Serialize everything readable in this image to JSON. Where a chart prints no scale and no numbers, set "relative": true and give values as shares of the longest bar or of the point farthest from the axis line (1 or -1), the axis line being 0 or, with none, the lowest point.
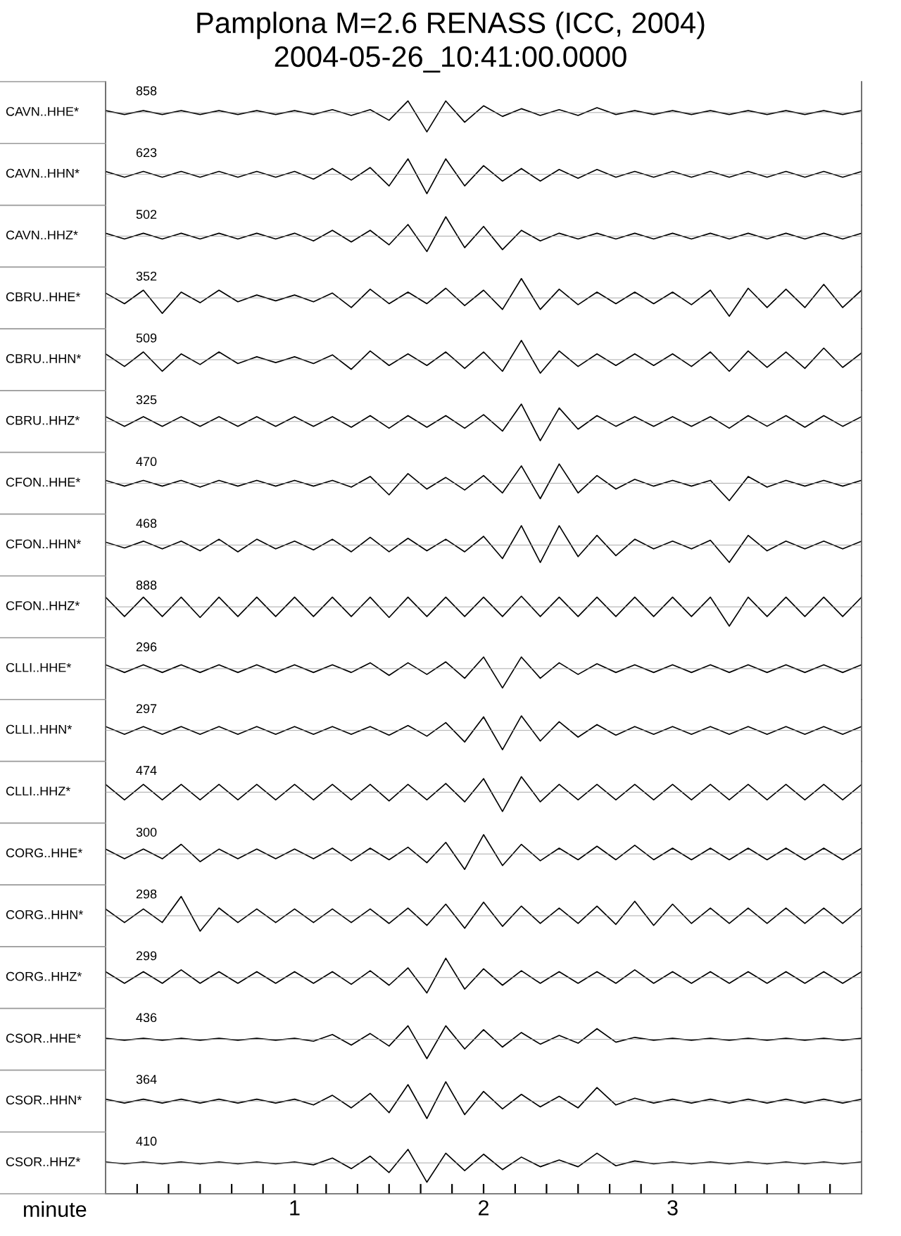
{
  "chart_data": [
    {
      "type": "line",
      "title": "Pamplona M=2.6 RENASS (ICC, 2004)",
      "subtitle": "2004-05-26_10:41:00.0000",
      "ylabel": "CAVN..HHE*",
      "annotations": [
        "858"
      ],
      "relative": true,
      "xlim": [
        0,
        4
      ],
      "tick_labels": false,
      "x": [
        0,
        0.1,
        0.2,
        0.3,
        0.4,
        0.5,
        0.6,
        0.7,
        0.8,
        0.9,
        1,
        1.1,
        1.2,
        1.3,
        1.4,
        1.5,
        1.6,
        1.7,
        1.8,
        1.9,
        2,
        2.1,
        2.2,
        2.3,
        2.4,
        2.5,
        2.6,
        2.7,
        2.8,
        2.9,
        3,
        3.1,
        3.2,
        3.3,
        3.4,
        3.5,
        3.6,
        3.7,
        3.8,
        3.9,
        4
      ],
      "series": [
        {
          "color": "#000000",
          "values": [
            0.1,
            -0.1,
            0.1,
            -0.1,
            0.1,
            -0.1,
            0.1,
            -0.1,
            0.1,
            -0.1,
            0.1,
            -0.1,
            0.15,
            -0.15,
            0.15,
            -0.4,
            0.6,
            -1,
            0.6,
            -0.5,
            0.35,
            -0.2,
            0.2,
            -0.15,
            0.15,
            -0.15,
            0.25,
            -0.1,
            0.1,
            -0.1,
            0.1,
            -0.1,
            0.1,
            -0.1,
            0.1,
            -0.1,
            0.1,
            -0.1,
            0.1,
            -0.1,
            0.1
          ]
        }
      ]
    },
    {
      "type": "line",
      "ylabel": "CAVN..HHN*",
      "annotations": [
        "623"
      ],
      "relative": true,
      "xlim": [
        0,
        4
      ],
      "tick_labels": false,
      "x": [
        0,
        0.1,
        0.2,
        0.3,
        0.4,
        0.5,
        0.6,
        0.7,
        0.8,
        0.9,
        1,
        1.1,
        1.2,
        1.3,
        1.4,
        1.5,
        1.6,
        1.7,
        1.8,
        1.9,
        2,
        2.1,
        2.2,
        2.3,
        2.4,
        2.5,
        2.6,
        2.7,
        2.8,
        2.9,
        3,
        3.1,
        3.2,
        3.3,
        3.4,
        3.5,
        3.6,
        3.7,
        3.8,
        3.9,
        4
      ],
      "series": [
        {
          "color": "#000000",
          "values": [
            0.15,
            -0.15,
            0.15,
            -0.15,
            0.15,
            -0.15,
            0.15,
            -0.15,
            0.15,
            -0.15,
            0.15,
            -0.25,
            0.3,
            -0.3,
            0.35,
            -0.6,
            0.8,
            -1,
            0.8,
            -0.6,
            0.45,
            -0.35,
            0.3,
            -0.35,
            0.25,
            -0.2,
            0.25,
            -0.15,
            0.15,
            -0.15,
            0.15,
            -0.15,
            0.15,
            -0.15,
            0.15,
            -0.15,
            0.15,
            -0.15,
            0.15,
            -0.15,
            0.15
          ]
        }
      ]
    },
    {
      "type": "line",
      "ylabel": "CAVN..HHZ*",
      "annotations": [
        "502"
      ],
      "relative": true,
      "xlim": [
        0,
        4
      ],
      "tick_labels": false,
      "x": [
        0,
        0.1,
        0.2,
        0.3,
        0.4,
        0.5,
        0.6,
        0.7,
        0.8,
        0.9,
        1,
        1.1,
        1.2,
        1.3,
        1.4,
        1.5,
        1.6,
        1.7,
        1.8,
        1.9,
        2,
        2.1,
        2.2,
        2.3,
        2.4,
        2.5,
        2.6,
        2.7,
        2.8,
        2.9,
        3,
        3.1,
        3.2,
        3.3,
        3.4,
        3.5,
        3.6,
        3.7,
        3.8,
        3.9,
        4
      ],
      "series": [
        {
          "color": "#000000",
          "values": [
            0.15,
            -0.15,
            0.15,
            -0.15,
            0.15,
            -0.15,
            0.15,
            -0.15,
            0.15,
            -0.15,
            0.15,
            -0.25,
            0.3,
            -0.3,
            0.3,
            -0.45,
            0.6,
            -0.8,
            1,
            -0.6,
            0.5,
            -0.7,
            0.3,
            -0.25,
            0.15,
            -0.15,
            0.15,
            -0.15,
            0.15,
            -0.15,
            0.15,
            -0.15,
            0.15,
            -0.15,
            0.15,
            -0.15,
            0.15,
            -0.15,
            0.15,
            -0.15,
            0.15
          ]
        }
      ]
    },
    {
      "type": "line",
      "ylabel": "CBRU..HHE*",
      "annotations": [
        "352"
      ],
      "relative": true,
      "xlim": [
        0,
        4
      ],
      "tick_labels": false,
      "x": [
        0,
        0.1,
        0.2,
        0.3,
        0.4,
        0.5,
        0.6,
        0.7,
        0.8,
        0.9,
        1,
        1.1,
        1.2,
        1.3,
        1.4,
        1.5,
        1.6,
        1.7,
        1.8,
        1.9,
        2,
        2.1,
        2.2,
        2.3,
        2.4,
        2.5,
        2.6,
        2.7,
        2.8,
        2.9,
        3,
        3.1,
        3.2,
        3.3,
        3.4,
        3.5,
        3.6,
        3.7,
        3.8,
        3.9,
        4
      ],
      "series": [
        {
          "color": "#000000",
          "values": [
            0.25,
            -0.3,
            0.4,
            -0.8,
            0.3,
            -0.25,
            0.4,
            -0.2,
            0.15,
            -0.15,
            0.15,
            -0.2,
            0.25,
            -0.5,
            0.45,
            -0.3,
            0.3,
            -0.3,
            0.5,
            -0.4,
            0.4,
            -0.6,
            1,
            -0.6,
            0.45,
            -0.35,
            0.3,
            -0.3,
            0.3,
            -0.3,
            0.3,
            -0.35,
            0.4,
            -0.95,
            0.5,
            -0.5,
            0.45,
            -0.5,
            0.7,
            -0.5,
            0.4
          ]
        }
      ]
    },
    {
      "type": "line",
      "ylabel": "CBRU..HHN*",
      "annotations": [
        "509"
      ],
      "relative": true,
      "xlim": [
        0,
        4
      ],
      "tick_labels": false,
      "x": [
        0,
        0.1,
        0.2,
        0.3,
        0.4,
        0.5,
        0.6,
        0.7,
        0.8,
        0.9,
        1,
        1.1,
        1.2,
        1.3,
        1.4,
        1.5,
        1.6,
        1.7,
        1.8,
        1.9,
        2,
        2.1,
        2.2,
        2.3,
        2.4,
        2.5,
        2.6,
        2.7,
        2.8,
        2.9,
        3,
        3.1,
        3.2,
        3.3,
        3.4,
        3.5,
        3.6,
        3.7,
        3.8,
        3.9,
        4
      ],
      "series": [
        {
          "color": "#000000",
          "values": [
            0.3,
            -0.35,
            0.4,
            -0.6,
            0.3,
            -0.25,
            0.4,
            -0.2,
            0.15,
            -0.15,
            0.15,
            -0.2,
            0.25,
            -0.5,
            0.45,
            -0.3,
            0.3,
            -0.3,
            0.4,
            -0.45,
            0.4,
            -0.6,
            1,
            -0.7,
            0.45,
            -0.35,
            0.3,
            -0.3,
            0.3,
            -0.3,
            0.3,
            -0.35,
            0.4,
            -0.6,
            0.45,
            -0.4,
            0.4,
            -0.45,
            0.6,
            -0.4,
            0.35
          ]
        }
      ]
    },
    {
      "type": "line",
      "ylabel": "CBRU..HHZ*",
      "annotations": [
        "325"
      ],
      "relative": true,
      "xlim": [
        0,
        4
      ],
      "tick_labels": false,
      "x": [
        0,
        0.1,
        0.2,
        0.3,
        0.4,
        0.5,
        0.6,
        0.7,
        0.8,
        0.9,
        1,
        1.1,
        1.2,
        1.3,
        1.4,
        1.5,
        1.6,
        1.7,
        1.8,
        1.9,
        2,
        2.1,
        2.2,
        2.3,
        2.4,
        2.5,
        2.6,
        2.7,
        2.8,
        2.9,
        3,
        3.1,
        3.2,
        3.3,
        3.4,
        3.5,
        3.6,
        3.7,
        3.8,
        3.9,
        4
      ],
      "series": [
        {
          "color": "#000000",
          "values": [
            0.25,
            -0.25,
            0.25,
            -0.25,
            0.25,
            -0.25,
            0.25,
            -0.25,
            0.25,
            -0.25,
            0.25,
            -0.25,
            0.25,
            -0.3,
            0.3,
            -0.35,
            0.3,
            -0.3,
            0.3,
            -0.35,
            0.35,
            -0.5,
            0.9,
            -1,
            0.7,
            -0.4,
            0.3,
            -0.25,
            0.25,
            -0.25,
            0.25,
            -0.25,
            0.25,
            -0.35,
            0.3,
            -0.25,
            0.3,
            -0.3,
            0.3,
            -0.25,
            0.25
          ]
        }
      ]
    },
    {
      "type": "line",
      "ylabel": "CFON..HHE*",
      "annotations": [
        "470"
      ],
      "relative": true,
      "xlim": [
        0,
        4
      ],
      "tick_labels": false,
      "x": [
        0,
        0.1,
        0.2,
        0.3,
        0.4,
        0.5,
        0.6,
        0.7,
        0.8,
        0.9,
        1,
        1.1,
        1.2,
        1.3,
        1.4,
        1.5,
        1.6,
        1.7,
        1.8,
        1.9,
        2,
        2.1,
        2.2,
        2.3,
        2.4,
        2.5,
        2.6,
        2.7,
        2.8,
        2.9,
        3,
        3.1,
        3.2,
        3.3,
        3.4,
        3.5,
        3.6,
        3.7,
        3.8,
        3.9,
        4
      ],
      "series": [
        {
          "color": "#000000",
          "values": [
            0.15,
            -0.15,
            0.15,
            -0.15,
            0.15,
            -0.2,
            0.15,
            -0.15,
            0.15,
            -0.15,
            0.15,
            -0.15,
            0.15,
            -0.2,
            0.35,
            -0.6,
            0.5,
            -0.3,
            0.3,
            -0.35,
            0.4,
            -0.5,
            0.9,
            -0.8,
            1,
            -0.5,
            0.4,
            -0.3,
            0.2,
            -0.15,
            0.15,
            -0.15,
            0.15,
            -0.9,
            0.35,
            -0.2,
            0.15,
            -0.15,
            0.15,
            -0.15,
            0.15
          ]
        }
      ]
    },
    {
      "type": "line",
      "ylabel": "CFON..HHN*",
      "annotations": [
        "468"
      ],
      "relative": true,
      "xlim": [
        0,
        4
      ],
      "tick_labels": false,
      "x": [
        0,
        0.1,
        0.2,
        0.3,
        0.4,
        0.5,
        0.6,
        0.7,
        0.8,
        0.9,
        1,
        1.1,
        1.2,
        1.3,
        1.4,
        1.5,
        1.6,
        1.7,
        1.8,
        1.9,
        2,
        2.1,
        2.2,
        2.3,
        2.4,
        2.5,
        2.6,
        2.7,
        2.8,
        2.9,
        3,
        3.1,
        3.2,
        3.3,
        3.4,
        3.5,
        3.6,
        3.7,
        3.8,
        3.9,
        4
      ],
      "series": [
        {
          "color": "#000000",
          "values": [
            0.15,
            -0.15,
            0.2,
            -0.2,
            0.2,
            -0.3,
            0.3,
            -0.35,
            0.3,
            -0.2,
            0.2,
            -0.25,
            0.3,
            -0.35,
            0.4,
            -0.35,
            0.35,
            -0.3,
            0.3,
            -0.35,
            0.45,
            -0.7,
            1,
            -0.9,
            1,
            -0.6,
            0.5,
            -0.55,
            0.3,
            -0.2,
            0.2,
            -0.2,
            0.25,
            -0.9,
            0.5,
            -0.3,
            0.2,
            -0.2,
            0.2,
            -0.2,
            0.2
          ]
        }
      ]
    },
    {
      "type": "line",
      "ylabel": "CFON..HHZ*",
      "annotations": [
        "888"
      ],
      "relative": true,
      "xlim": [
        0,
        4
      ],
      "tick_labels": false,
      "x": [
        0,
        0.1,
        0.2,
        0.3,
        0.4,
        0.5,
        0.6,
        0.7,
        0.8,
        0.9,
        1,
        1.1,
        1.2,
        1.3,
        1.4,
        1.5,
        1.6,
        1.7,
        1.8,
        1.9,
        2,
        2.1,
        2.2,
        2.3,
        2.4,
        2.5,
        2.6,
        2.7,
        2.8,
        2.9,
        3,
        3.1,
        3.2,
        3.3,
        3.4,
        3.5,
        3.6,
        3.7,
        3.8,
        3.9,
        4
      ],
      "series": [
        {
          "color": "#000000",
          "values": [
            0.5,
            -0.5,
            0.5,
            -0.5,
            0.5,
            -0.55,
            0.5,
            -0.5,
            0.5,
            -0.5,
            0.5,
            -0.5,
            0.5,
            -0.5,
            0.5,
            -0.55,
            0.5,
            -0.5,
            0.5,
            -0.5,
            0.5,
            -0.5,
            0.55,
            -0.5,
            0.5,
            -0.5,
            0.5,
            -0.5,
            0.5,
            -0.5,
            0.5,
            -0.5,
            0.5,
            -1,
            0.5,
            -0.5,
            0.5,
            -0.5,
            0.5,
            -0.5,
            0.5
          ]
        }
      ]
    },
    {
      "type": "line",
      "ylabel": "CLLI..HHE*",
      "annotations": [
        "296"
      ],
      "relative": true,
      "xlim": [
        0,
        4
      ],
      "tick_labels": false,
      "x": [
        0,
        0.1,
        0.2,
        0.3,
        0.4,
        0.5,
        0.6,
        0.7,
        0.8,
        0.9,
        1,
        1.1,
        1.2,
        1.3,
        1.4,
        1.5,
        1.6,
        1.7,
        1.8,
        1.9,
        2,
        2.1,
        2.2,
        2.3,
        2.4,
        2.5,
        2.6,
        2.7,
        2.8,
        2.9,
        3,
        3.1,
        3.2,
        3.3,
        3.4,
        3.5,
        3.6,
        3.7,
        3.8,
        3.9,
        4
      ],
      "series": [
        {
          "color": "#000000",
          "values": [
            0.2,
            -0.2,
            0.2,
            -0.2,
            0.2,
            -0.2,
            0.2,
            -0.2,
            0.2,
            -0.2,
            0.2,
            -0.2,
            0.2,
            -0.2,
            0.3,
            -0.35,
            0.3,
            -0.3,
            0.35,
            -0.5,
            0.6,
            -1,
            0.6,
            -0.5,
            0.3,
            -0.3,
            0.25,
            -0.2,
            0.2,
            -0.2,
            0.2,
            -0.2,
            0.2,
            -0.2,
            0.2,
            -0.2,
            0.2,
            -0.2,
            0.2,
            -0.2,
            0.2
          ]
        }
      ]
    },
    {
      "type": "line",
      "ylabel": "CLLI..HHN*",
      "annotations": [
        "297"
      ],
      "relative": true,
      "xlim": [
        0,
        4
      ],
      "tick_labels": false,
      "x": [
        0,
        0.1,
        0.2,
        0.3,
        0.4,
        0.5,
        0.6,
        0.7,
        0.8,
        0.9,
        1,
        1.1,
        1.2,
        1.3,
        1.4,
        1.5,
        1.6,
        1.7,
        1.8,
        1.9,
        2,
        2.1,
        2.2,
        2.3,
        2.4,
        2.5,
        2.6,
        2.7,
        2.8,
        2.9,
        3,
        3.1,
        3.2,
        3.3,
        3.4,
        3.5,
        3.6,
        3.7,
        3.8,
        3.9,
        4
      ],
      "series": [
        {
          "color": "#000000",
          "values": [
            0.2,
            -0.2,
            0.2,
            -0.2,
            0.2,
            -0.2,
            0.2,
            -0.2,
            0.2,
            -0.2,
            0.2,
            -0.2,
            0.2,
            -0.2,
            0.2,
            -0.25,
            0.25,
            -0.3,
            0.4,
            -0.6,
            0.7,
            -1,
            0.75,
            -0.55,
            0.45,
            -0.35,
            0.3,
            -0.25,
            0.2,
            -0.2,
            0.2,
            -0.2,
            0.2,
            -0.2,
            0.2,
            -0.2,
            0.2,
            -0.2,
            0.2,
            -0.2,
            0.2
          ]
        }
      ]
    },
    {
      "type": "line",
      "ylabel": "CLLI..HHZ*",
      "annotations": [
        "474"
      ],
      "relative": true,
      "xlim": [
        0,
        4
      ],
      "tick_labels": false,
      "x": [
        0,
        0.1,
        0.2,
        0.3,
        0.4,
        0.5,
        0.6,
        0.7,
        0.8,
        0.9,
        1,
        1.1,
        1.2,
        1.3,
        1.4,
        1.5,
        1.6,
        1.7,
        1.8,
        1.9,
        2,
        2.1,
        2.2,
        2.3,
        2.4,
        2.5,
        2.6,
        2.7,
        2.8,
        2.9,
        3,
        3.1,
        3.2,
        3.3,
        3.4,
        3.5,
        3.6,
        3.7,
        3.8,
        3.9,
        4
      ],
      "series": [
        {
          "color": "#000000",
          "values": [
            0.4,
            -0.4,
            0.4,
            -0.4,
            0.4,
            -0.4,
            0.4,
            -0.4,
            0.4,
            -0.4,
            0.4,
            -0.4,
            0.4,
            -0.4,
            0.4,
            -0.45,
            0.4,
            -0.4,
            0.45,
            -0.5,
            0.7,
            -1,
            0.8,
            -0.5,
            0.4,
            -0.4,
            0.4,
            -0.4,
            0.4,
            -0.4,
            0.4,
            -0.4,
            0.4,
            -0.4,
            0.4,
            -0.4,
            0.4,
            -0.4,
            0.4,
            -0.4,
            0.4
          ]
        }
      ]
    },
    {
      "type": "line",
      "ylabel": "CORG..HHE*",
      "annotations": [
        "300"
      ],
      "relative": true,
      "xlim": [
        0,
        4
      ],
      "tick_labels": false,
      "x": [
        0,
        0.1,
        0.2,
        0.3,
        0.4,
        0.5,
        0.6,
        0.7,
        0.8,
        0.9,
        1,
        1.1,
        1.2,
        1.3,
        1.4,
        1.5,
        1.6,
        1.7,
        1.8,
        1.9,
        2,
        2.1,
        2.2,
        2.3,
        2.4,
        2.5,
        2.6,
        2.7,
        2.8,
        2.9,
        3,
        3.1,
        3.2,
        3.3,
        3.4,
        3.5,
        3.6,
        3.7,
        3.8,
        3.9,
        4
      ],
      "series": [
        {
          "color": "#000000",
          "values": [
            0.25,
            -0.25,
            0.25,
            -0.25,
            0.5,
            -0.4,
            0.25,
            -0.25,
            0.25,
            -0.25,
            0.25,
            -0.25,
            0.3,
            -0.35,
            0.3,
            -0.3,
            0.35,
            -0.45,
            0.6,
            -0.8,
            1,
            -0.6,
            0.5,
            -0.35,
            0.3,
            -0.3,
            0.4,
            -0.3,
            0.45,
            -0.3,
            0.3,
            -0.3,
            0.3,
            -0.3,
            0.3,
            -0.3,
            0.3,
            -0.3,
            0.3,
            -0.3,
            0.3
          ]
        }
      ]
    },
    {
      "type": "line",
      "ylabel": "CORG..HHN*",
      "annotations": [
        "298"
      ],
      "relative": true,
      "xlim": [
        0,
        4
      ],
      "tick_labels": false,
      "x": [
        0,
        0.1,
        0.2,
        0.3,
        0.4,
        0.5,
        0.6,
        0.7,
        0.8,
        0.9,
        1,
        1.1,
        1.2,
        1.3,
        1.4,
        1.5,
        1.6,
        1.7,
        1.8,
        1.9,
        2,
        2.1,
        2.2,
        2.3,
        2.4,
        2.5,
        2.6,
        2.7,
        2.8,
        2.9,
        3,
        3.1,
        3.2,
        3.3,
        3.4,
        3.5,
        3.6,
        3.7,
        3.8,
        3.9,
        4
      ],
      "series": [
        {
          "color": "#000000",
          "values": [
            0.35,
            -0.35,
            0.35,
            -0.35,
            1,
            -0.8,
            0.4,
            -0.35,
            0.35,
            -0.35,
            0.35,
            -0.35,
            0.35,
            -0.35,
            0.35,
            -0.4,
            0.4,
            -0.5,
            0.6,
            -0.65,
            0.7,
            -0.55,
            0.5,
            -0.4,
            0.4,
            -0.4,
            0.5,
            -0.45,
            0.75,
            -0.5,
            0.6,
            -0.4,
            0.4,
            -0.4,
            0.4,
            -0.4,
            0.4,
            -0.4,
            0.4,
            -0.4,
            0.4
          ]
        }
      ]
    },
    {
      "type": "line",
      "ylabel": "CORG..HHZ*",
      "annotations": [
        "299"
      ],
      "relative": true,
      "xlim": [
        0,
        4
      ],
      "tick_labels": false,
      "x": [
        0,
        0.1,
        0.2,
        0.3,
        0.4,
        0.5,
        0.6,
        0.7,
        0.8,
        0.9,
        1,
        1.1,
        1.2,
        1.3,
        1.4,
        1.5,
        1.6,
        1.7,
        1.8,
        1.9,
        2,
        2.1,
        2.2,
        2.3,
        2.4,
        2.5,
        2.6,
        2.7,
        2.8,
        2.9,
        3,
        3.1,
        3.2,
        3.3,
        3.4,
        3.5,
        3.6,
        3.7,
        3.8,
        3.9,
        4
      ],
      "series": [
        {
          "color": "#000000",
          "values": [
            0.3,
            -0.3,
            0.3,
            -0.3,
            0.4,
            -0.3,
            0.3,
            -0.3,
            0.3,
            -0.3,
            0.3,
            -0.3,
            0.3,
            -0.35,
            0.35,
            -0.4,
            0.5,
            -0.8,
            1,
            -0.6,
            0.45,
            -0.4,
            0.35,
            -0.3,
            0.3,
            -0.3,
            0.3,
            -0.3,
            0.4,
            -0.3,
            0.3,
            -0.3,
            0.3,
            -0.3,
            0.3,
            -0.3,
            0.3,
            -0.3,
            0.3,
            -0.3,
            0.3
          ]
        }
      ]
    },
    {
      "type": "line",
      "ylabel": "CSOR..HHE*",
      "annotations": [
        "436"
      ],
      "relative": true,
      "xlim": [
        0,
        4
      ],
      "tick_labels": false,
      "x": [
        0,
        0.1,
        0.2,
        0.3,
        0.4,
        0.5,
        0.6,
        0.7,
        0.8,
        0.9,
        1,
        1.1,
        1.2,
        1.3,
        1.4,
        1.5,
        1.6,
        1.7,
        1.8,
        1.9,
        2,
        2.1,
        2.2,
        2.3,
        2.4,
        2.5,
        2.6,
        2.7,
        2.8,
        2.9,
        3,
        3.1,
        3.2,
        3.3,
        3.4,
        3.5,
        3.6,
        3.7,
        3.8,
        3.9,
        4
      ],
      "series": [
        {
          "color": "#000000",
          "values": [
            0.05,
            -0.05,
            0.05,
            -0.05,
            0.05,
            -0.05,
            0.05,
            -0.05,
            0.05,
            -0.05,
            0.05,
            -0.1,
            0.25,
            -0.3,
            0.3,
            -0.35,
            0.7,
            -1,
            0.7,
            -0.5,
            0.5,
            -0.4,
            0.35,
            -0.25,
            0.2,
            -0.2,
            0.55,
            -0.15,
            0.1,
            -0.05,
            0.05,
            -0.05,
            0.05,
            -0.05,
            0.05,
            -0.05,
            0.05,
            -0.05,
            0.05,
            -0.05,
            0.05
          ]
        }
      ]
    },
    {
      "type": "line",
      "ylabel": "CSOR..HHN*",
      "annotations": [
        "364"
      ],
      "relative": true,
      "xlim": [
        0,
        4
      ],
      "tick_labels": false,
      "x": [
        0,
        0.1,
        0.2,
        0.3,
        0.4,
        0.5,
        0.6,
        0.7,
        0.8,
        0.9,
        1,
        1.1,
        1.2,
        1.3,
        1.4,
        1.5,
        1.6,
        1.7,
        1.8,
        1.9,
        2,
        2.1,
        2.2,
        2.3,
        2.4,
        2.5,
        2.6,
        2.7,
        2.8,
        2.9,
        3,
        3.1,
        3.2,
        3.3,
        3.4,
        3.5,
        3.6,
        3.7,
        3.8,
        3.9,
        4
      ],
      "series": [
        {
          "color": "#000000",
          "values": [
            0.1,
            -0.1,
            0.1,
            -0.1,
            0.1,
            -0.1,
            0.1,
            -0.1,
            0.1,
            -0.1,
            0.1,
            -0.2,
            0.3,
            -0.35,
            0.4,
            -0.6,
            0.85,
            -0.9,
            1,
            -0.7,
            0.5,
            -0.4,
            0.35,
            -0.3,
            0.25,
            -0.35,
            0.7,
            -0.2,
            0.15,
            -0.1,
            0.1,
            -0.1,
            0.1,
            -0.1,
            0.1,
            -0.1,
            0.1,
            -0.1,
            0.1,
            -0.1,
            0.1
          ]
        }
      ]
    },
    {
      "type": "line",
      "ylabel": "CSOR..HHZ*",
      "xlabel": "minute",
      "annotations": [
        "410"
      ],
      "relative": true,
      "xlim": [
        0,
        4
      ],
      "tick_labels": "x",
      "xticks": [
        {
          "value": 0.167,
          "label": null
        },
        {
          "value": 0.333,
          "label": null
        },
        {
          "value": 0.5,
          "label": null
        },
        {
          "value": 0.667,
          "label": null
        },
        {
          "value": 0.833,
          "label": null
        },
        1,
        {
          "value": 1.167,
          "label": null
        },
        {
          "value": 1.333,
          "label": null
        },
        {
          "value": 1.5,
          "label": null
        },
        {
          "value": 1.667,
          "label": null
        },
        {
          "value": 1.833,
          "label": null
        },
        2,
        {
          "value": 2.167,
          "label": null
        },
        {
          "value": 2.333,
          "label": null
        },
        {
          "value": 2.5,
          "label": null
        },
        {
          "value": 2.667,
          "label": null
        },
        {
          "value": 2.833,
          "label": null
        },
        3,
        {
          "value": 3.167,
          "label": null
        },
        {
          "value": 3.333,
          "label": null
        },
        {
          "value": 3.5,
          "label": null
        },
        {
          "value": 3.667,
          "label": null
        },
        {
          "value": 3.833,
          "label": null
        }
      ],
      "x": [
        0,
        0.1,
        0.2,
        0.3,
        0.4,
        0.5,
        0.6,
        0.7,
        0.8,
        0.9,
        1,
        1.1,
        1.2,
        1.3,
        1.4,
        1.5,
        1.6,
        1.7,
        1.8,
        1.9,
        2,
        2.1,
        2.2,
        2.3,
        2.4,
        2.5,
        2.6,
        2.7,
        2.8,
        2.9,
        3,
        3.1,
        3.2,
        3.3,
        3.4,
        3.5,
        3.6,
        3.7,
        3.8,
        3.9,
        4
      ],
      "series": [
        {
          "color": "#000000",
          "values": [
            0.05,
            -0.05,
            0.05,
            -0.05,
            0.05,
            -0.05,
            0.05,
            -0.05,
            0.05,
            -0.05,
            0.05,
            -0.1,
            0.25,
            -0.3,
            0.35,
            -0.5,
            0.7,
            -1,
            0.5,
            -0.4,
            0.45,
            -0.35,
            0.3,
            -0.2,
            0.15,
            -0.2,
            0.5,
            -0.15,
            0.1,
            -0.05,
            0.05,
            -0.05,
            0.05,
            -0.05,
            0.05,
            -0.05,
            0.05,
            -0.05,
            0.05,
            -0.05,
            0.05
          ]
        }
      ]
    }
  ]
}
